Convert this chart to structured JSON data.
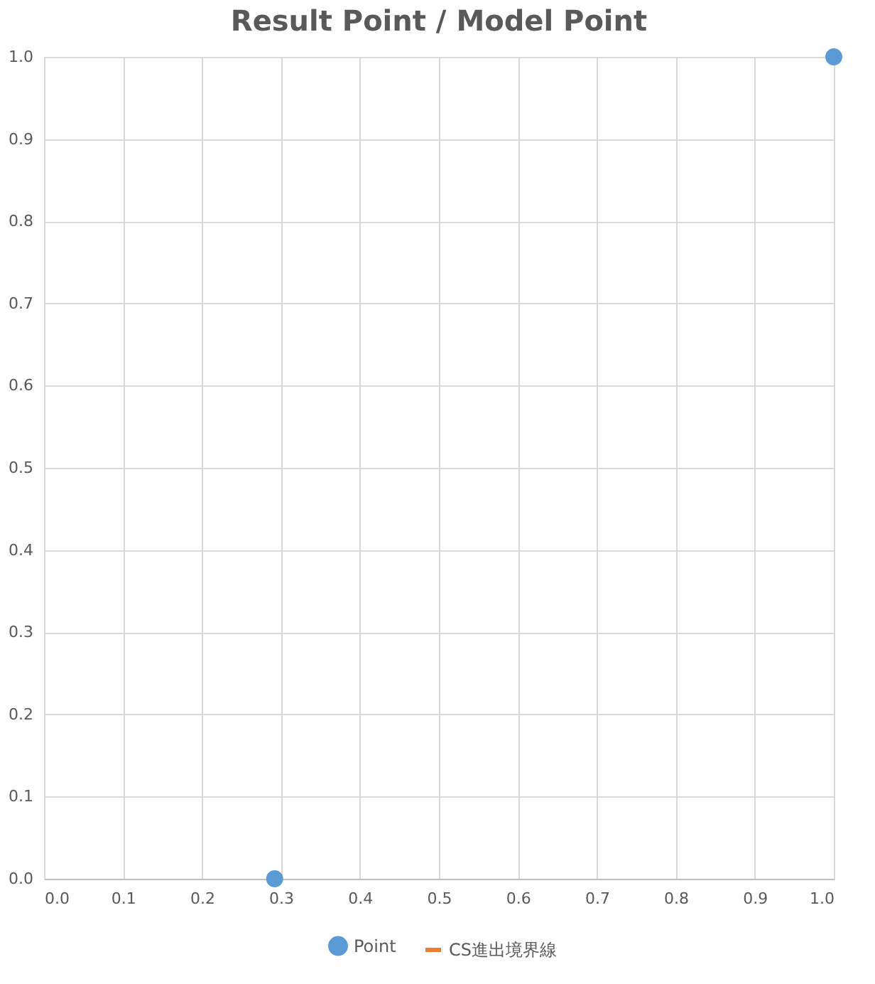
{
  "chart_data": {
    "type": "scatter",
    "title": "Result Point / Model Point",
    "series": [
      {
        "name": "Point",
        "color": "#5b9bd5",
        "x": [
          0.292,
          1.0
        ],
        "values": [
          0.0,
          1.0
        ]
      },
      {
        "name": "CS進出境界線",
        "type": "line",
        "color": "#ed7d31",
        "x": [
          null
        ],
        "values": [
          null
        ]
      }
    ],
    "xlim": [
      0,
      1
    ],
    "xticks": [
      {
        "value": 0,
        "label": "0.0"
      },
      {
        "value": 0.1,
        "label": "0.1"
      },
      {
        "value": 0.2,
        "label": "0.2"
      },
      {
        "value": 0.3,
        "label": "0.3"
      },
      {
        "value": 0.4,
        "label": "0.4"
      },
      {
        "value": 0.5,
        "label": "0.5"
      },
      {
        "value": 0.6,
        "label": "0.6"
      },
      {
        "value": 0.7,
        "label": "0.7"
      },
      {
        "value": 0.8,
        "label": "0.8"
      },
      {
        "value": 0.9,
        "label": "0.9"
      },
      {
        "value": 1,
        "label": "1.0"
      }
    ],
    "ylim": [
      0,
      1
    ],
    "yticks": [
      {
        "value": 0,
        "label": "0.0"
      },
      {
        "value": 0.1,
        "label": "0.1"
      },
      {
        "value": 0.2,
        "label": "0.2"
      },
      {
        "value": 0.3,
        "label": "0.3"
      },
      {
        "value": 0.4,
        "label": "0.4"
      },
      {
        "value": 0.5,
        "label": "0.5"
      },
      {
        "value": 0.6,
        "label": "0.6"
      },
      {
        "value": 0.7,
        "label": "0.7"
      },
      {
        "value": 0.8,
        "label": "0.8"
      },
      {
        "value": 0.9,
        "label": "0.9"
      },
      {
        "value": 1,
        "label": "1.0"
      }
    ],
    "grid": true,
    "legend": "bottom",
    "marker": "circle"
  }
}
